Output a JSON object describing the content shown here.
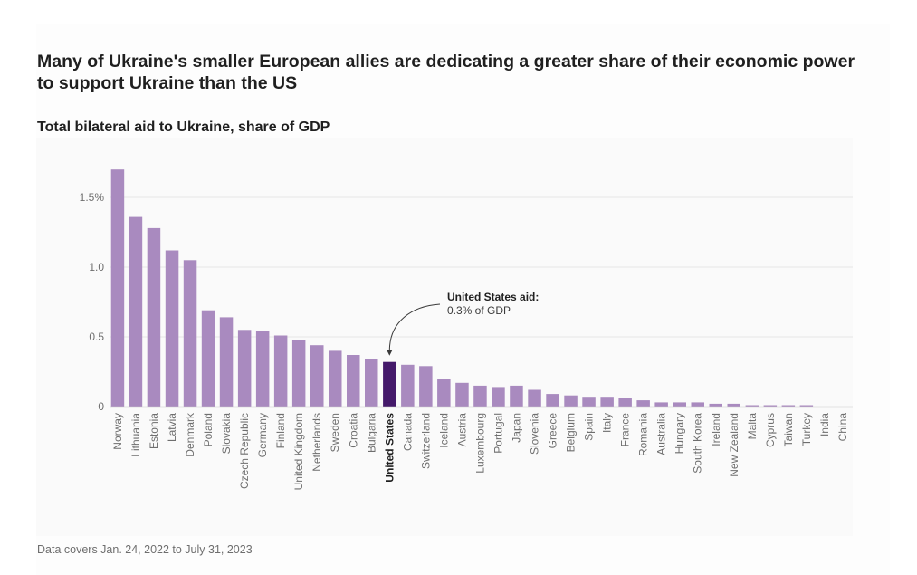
{
  "header": {
    "title": "Many of Ukraine's smaller European allies are dedicating a greater share of their economic power to support Ukraine than the US",
    "subtitle": "Total bilateral aid to Ukraine, share of GDP"
  },
  "footer": {
    "note": "Data covers Jan. 24, 2022 to July 31, 2023"
  },
  "colors": {
    "bar": "#a98abf",
    "highlight": "#44196a",
    "grid": "#ebebeb",
    "axis": "#cccccc"
  },
  "chart_data": {
    "type": "bar",
    "title": "Many of Ukraine's smaller European allies are dedicating a greater share of their economic power to support Ukraine than the US",
    "subtitle": "Total bilateral aid to Ukraine, share of GDP",
    "xlabel": "",
    "ylabel": "",
    "ylim": [
      0,
      1.75
    ],
    "yticks": [
      0,
      0.5,
      1.0,
      1.5
    ],
    "ytick_labels": [
      "0",
      "0.5",
      "1.0",
      "1.5%"
    ],
    "grid": true,
    "highlight_category": "United States",
    "categories": [
      "Norway",
      "Lithuania",
      "Estonia",
      "Latvia",
      "Denmark",
      "Poland",
      "Slovakia",
      "Czech Republic",
      "Germany",
      "Finland",
      "United Kingdom",
      "Netherlands",
      "Sweden",
      "Croatia",
      "Bulgaria",
      "United States",
      "Canada",
      "Switzerland",
      "Iceland",
      "Austria",
      "Luxembourg",
      "Portugal",
      "Japan",
      "Slovenia",
      "Greece",
      "Belgium",
      "Spain",
      "Italy",
      "France",
      "Romania",
      "Australia",
      "Hungary",
      "South Korea",
      "Ireland",
      "New Zealand",
      "Malta",
      "Cyprus",
      "Taiwan",
      "Turkey",
      "India",
      "China"
    ],
    "values": [
      1.7,
      1.36,
      1.28,
      1.12,
      1.05,
      0.69,
      0.64,
      0.55,
      0.54,
      0.51,
      0.48,
      0.44,
      0.4,
      0.37,
      0.34,
      0.32,
      0.3,
      0.29,
      0.2,
      0.17,
      0.15,
      0.14,
      0.15,
      0.12,
      0.09,
      0.08,
      0.07,
      0.07,
      0.06,
      0.045,
      0.03,
      0.03,
      0.03,
      0.02,
      0.02,
      0.01,
      0.01,
      0.01,
      0.01,
      0.0,
      0.0
    ],
    "annotation": {
      "target": "United States",
      "title": "United States aid:",
      "text": "0.3% of GDP"
    }
  }
}
